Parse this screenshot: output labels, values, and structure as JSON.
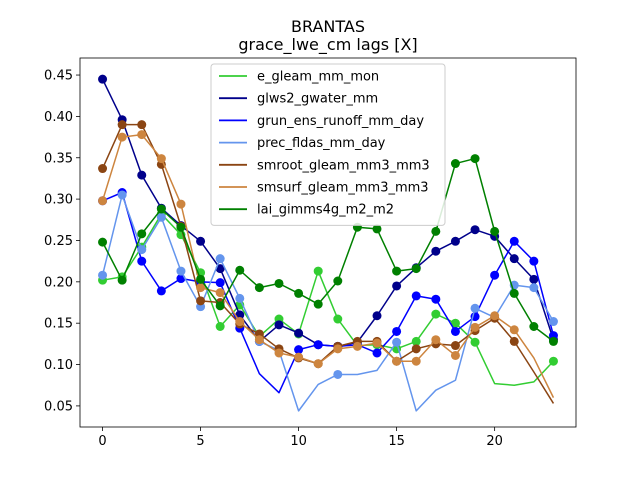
{
  "chart_data": {
    "type": "line",
    "title": "BRANTAS",
    "subtitle": "grace_lwe_cm lags [X]",
    "xlabel": "",
    "ylabel": "",
    "xlim": [
      -1.15,
      24.15
    ],
    "ylim": [
      0.0245,
      0.4706
    ],
    "xticks": [
      0,
      5,
      10,
      15,
      20
    ],
    "yticks": [
      0.05,
      0.1,
      0.15,
      0.2,
      0.25,
      0.3,
      0.35,
      0.4,
      0.45
    ],
    "ytick_labels": [
      "0.05",
      "0.10",
      "0.15",
      "0.20",
      "0.25",
      "0.30",
      "0.35",
      "0.40",
      "0.45"
    ],
    "grid": false,
    "legend_position": "top-center",
    "x": [
      0,
      1,
      2,
      3,
      4,
      5,
      6,
      7,
      8,
      9,
      10,
      11,
      12,
      13,
      14,
      15,
      16,
      17,
      18,
      19,
      20,
      21,
      22,
      23
    ],
    "series": [
      {
        "name": "e_gleam_mm_mon",
        "color": "#32cd32",
        "values": [
          0.202,
          0.206,
          0.242,
          0.282,
          0.257,
          0.211,
          0.146,
          0.172,
          0.134,
          0.155,
          0.137,
          0.213,
          0.155,
          0.123,
          0.124,
          0.119,
          0.128,
          0.161,
          0.15,
          0.127,
          0.077,
          0.075,
          0.079,
          0.104
        ],
        "markers": [
          0,
          1,
          2,
          3,
          4,
          5,
          6,
          7,
          8,
          9,
          10,
          11,
          12,
          13,
          14,
          15,
          16,
          17,
          18,
          19,
          23
        ]
      },
      {
        "name": "glws2_gwater_mm",
        "color": "#00008b",
        "values": [
          0.445,
          0.396,
          0.329,
          0.289,
          0.268,
          0.249,
          0.216,
          0.16,
          0.128,
          0.148,
          0.138,
          0.124,
          0.122,
          0.127,
          0.159,
          0.195,
          0.217,
          0.237,
          0.249,
          0.263,
          0.255,
          0.228,
          0.203,
          0.13
        ],
        "markers": [
          0,
          1,
          2,
          3,
          4,
          5,
          6,
          7,
          8,
          9,
          10,
          11,
          12,
          13,
          14,
          15,
          16,
          17,
          18,
          19,
          20,
          21,
          22,
          23
        ]
      },
      {
        "name": "grun_ens_runoff_mm_day",
        "color": "#0000ff",
        "values": [
          0.298,
          0.308,
          0.225,
          0.189,
          0.204,
          0.2,
          0.199,
          0.144,
          0.089,
          0.066,
          0.118,
          0.124,
          0.122,
          0.124,
          0.114,
          0.14,
          0.183,
          0.179,
          0.14,
          0.158,
          0.208,
          0.249,
          0.225,
          0.135
        ],
        "markers": [
          0,
          1,
          2,
          3,
          4,
          5,
          6,
          7,
          10,
          11,
          12,
          13,
          14,
          15,
          16,
          17,
          18,
          19,
          20,
          21,
          22,
          23
        ]
      },
      {
        "name": "prec_fldas_mm_day",
        "color": "#6495ed",
        "values": [
          0.208,
          0.305,
          0.239,
          0.278,
          0.213,
          0.17,
          0.228,
          0.18,
          0.128,
          0.117,
          0.044,
          0.076,
          0.088,
          0.088,
          0.093,
          0.127,
          0.044,
          0.069,
          0.081,
          0.168,
          0.157,
          0.196,
          0.193,
          0.152
        ],
        "markers": [
          0,
          1,
          2,
          3,
          4,
          5,
          6,
          7,
          8,
          9,
          12,
          15,
          19,
          20,
          21,
          22,
          23
        ]
      },
      {
        "name": "smroot_gleam_mm3_mm3",
        "color": "#8b4513",
        "values": [
          0.337,
          0.39,
          0.39,
          0.342,
          0.267,
          0.177,
          0.175,
          0.149,
          0.137,
          0.119,
          0.108,
          0.101,
          0.122,
          0.128,
          0.128,
          0.104,
          0.119,
          0.125,
          0.123,
          0.141,
          0.156,
          0.128,
          0.091,
          0.053
        ],
        "markers": [
          0,
          1,
          2,
          3,
          4,
          5,
          6,
          7,
          8,
          9,
          10,
          11,
          12,
          13,
          14,
          15,
          16,
          17,
          18,
          19,
          20,
          21
        ]
      },
      {
        "name": "smsurf_gleam_mm3_mm3",
        "color": "#cd853f",
        "values": [
          0.298,
          0.375,
          0.378,
          0.349,
          0.294,
          0.193,
          0.187,
          0.152,
          0.13,
          0.114,
          0.109,
          0.101,
          0.119,
          0.122,
          0.126,
          0.104,
          0.104,
          0.13,
          0.111,
          0.145,
          0.159,
          0.142,
          0.108,
          0.06
        ],
        "markers": [
          0,
          1,
          2,
          3,
          4,
          5,
          6,
          7,
          8,
          9,
          10,
          11,
          12,
          13,
          14,
          15,
          16,
          17,
          18,
          19,
          20,
          21
        ]
      },
      {
        "name": "lai_gimms4g_m2_m2",
        "color": "#008000",
        "values": [
          0.248,
          0.202,
          0.258,
          0.288,
          0.266,
          0.203,
          0.171,
          0.214,
          0.193,
          0.198,
          0.186,
          0.173,
          0.201,
          0.266,
          0.264,
          0.213,
          0.216,
          0.261,
          0.343,
          0.349,
          0.261,
          0.186,
          0.146,
          0.128
        ],
        "markers": [
          0,
          1,
          2,
          3,
          4,
          5,
          6,
          7,
          8,
          9,
          10,
          11,
          12,
          13,
          14,
          15,
          16,
          17,
          18,
          19,
          20,
          21,
          22,
          23
        ]
      }
    ]
  }
}
